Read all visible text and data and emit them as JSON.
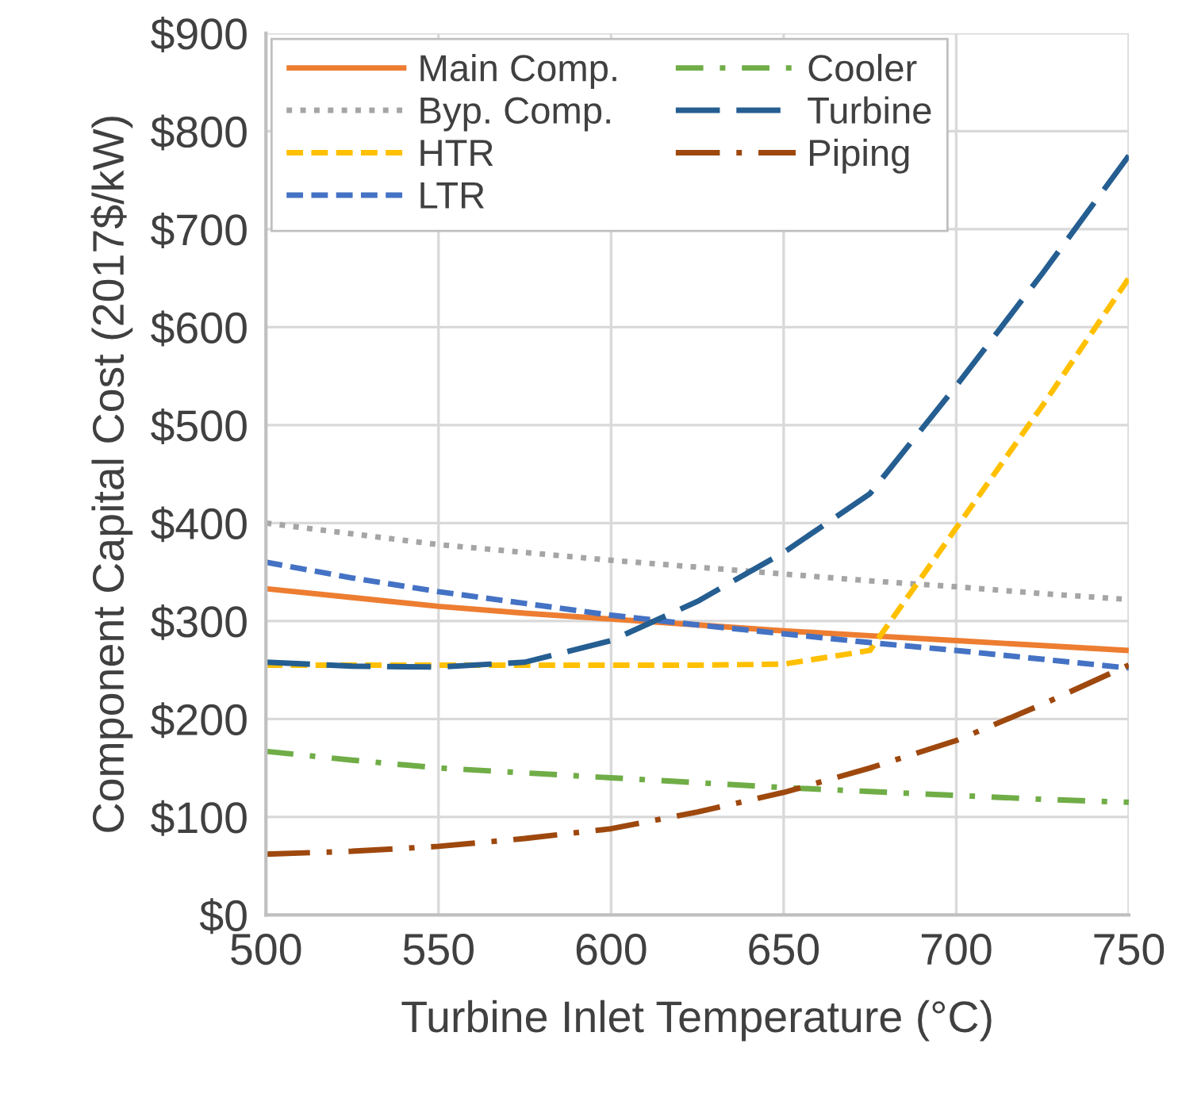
{
  "chart_data": {
    "type": "line",
    "xlabel": "Turbine Inlet Temperature (°C)",
    "ylabel": "Component Capital Cost (2017$/kW)",
    "x": [
      500,
      525,
      550,
      575,
      600,
      625,
      650,
      675,
      700,
      725,
      750
    ],
    "series": [
      {
        "name": "Main Comp.",
        "color": "#ed7d31",
        "line_style": "solid",
        "values": [
          333,
          324,
          315,
          308,
          302,
          296,
          290,
          285,
          280,
          275,
          270
        ]
      },
      {
        "name": "Byp. Comp.",
        "color": "#a5a5a5",
        "line_style": "dotted",
        "values": [
          400,
          389,
          378,
          370,
          362,
          355,
          348,
          341,
          335,
          328,
          322
        ]
      },
      {
        "name": "HTR",
        "color": "#ffc000",
        "line_style": "dashed",
        "values": [
          255,
          255,
          255,
          255,
          255,
          255,
          256,
          270,
          395,
          520,
          650
        ]
      },
      {
        "name": "LTR",
        "color": "#4472c4",
        "line_style": "dashed",
        "values": [
          360,
          344,
          330,
          318,
          306,
          296,
          287,
          278,
          270,
          261,
          252
        ]
      },
      {
        "name": "Cooler",
        "color": "#70ad47",
        "line_style": "dashdot",
        "values": [
          167,
          158,
          150,
          145,
          140,
          135,
          130,
          126,
          122,
          118,
          115
        ]
      },
      {
        "name": "Turbine",
        "color": "#255e91",
        "line_style": "longdash",
        "values": [
          258,
          254,
          253,
          258,
          280,
          320,
          370,
          430,
          540,
          655,
          775
        ]
      },
      {
        "name": "Piping",
        "color": "#9e480e",
        "line_style": "longdashdot",
        "values": [
          62,
          65,
          70,
          78,
          88,
          105,
          125,
          150,
          178,
          215,
          255
        ]
      }
    ],
    "xlim": [
      500,
      750
    ],
    "xticks": [
      500,
      550,
      600,
      650,
      700,
      750
    ],
    "ylim": [
      0,
      900
    ],
    "yticks": [
      {
        "value": 0,
        "label": "$0"
      },
      {
        "value": 100,
        "label": "$100"
      },
      {
        "value": 200,
        "label": "$200"
      },
      {
        "value": 300,
        "label": "$300"
      },
      {
        "value": 400,
        "label": "$400"
      },
      {
        "value": 500,
        "label": "$500"
      },
      {
        "value": 600,
        "label": "$600"
      },
      {
        "value": 700,
        "label": "$700"
      },
      {
        "value": 800,
        "label": "$800"
      },
      {
        "value": 900,
        "label": "$900"
      }
    ],
    "grid": true,
    "legend": "top left",
    "marker": "none"
  }
}
